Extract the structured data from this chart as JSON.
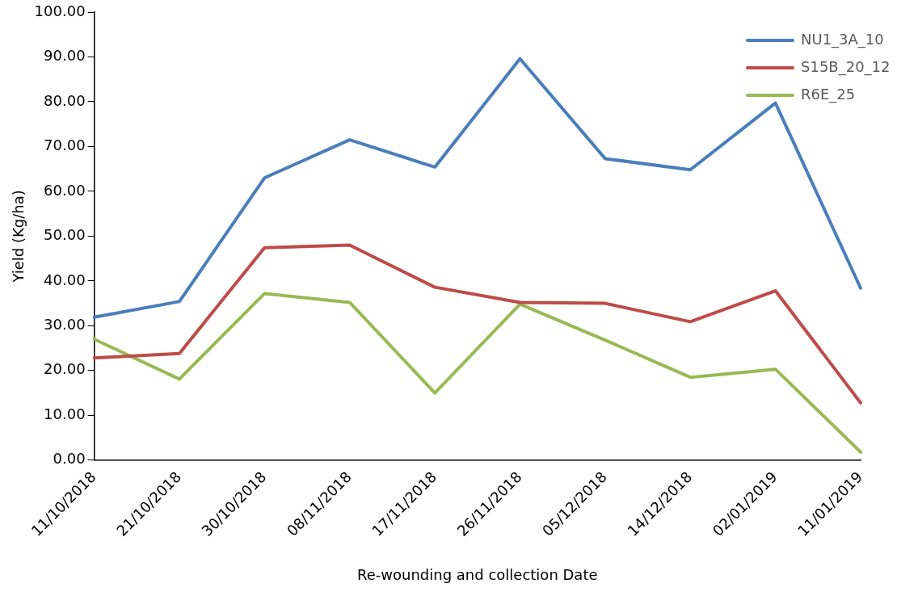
{
  "chart_data": {
    "type": "line",
    "xlabel": "Re-wounding and collection Date",
    "ylabel": "Yield (Kg/ha)",
    "categories": [
      "11/10/2018",
      "21/10/2018",
      "30/10/2018",
      "08/11/2018",
      "17/11/2018",
      "26/11/2018",
      "05/12/2018",
      "14/12/2018",
      "02/01/2019",
      "11/01/2019"
    ],
    "series": [
      {
        "name": "NU1_3A_10",
        "color": "#4a7ebb",
        "values": [
          31.9,
          35.4,
          63.0,
          71.5,
          65.4,
          89.6,
          67.3,
          64.8,
          79.7,
          38.4
        ]
      },
      {
        "name": "S15B_20_12",
        "color": "#be4b48",
        "values": [
          22.8,
          23.8,
          47.4,
          48.0,
          38.6,
          35.2,
          35.0,
          30.9,
          37.8,
          12.8
        ]
      },
      {
        "name": "R6E_25",
        "color": "#98b954",
        "values": [
          27.0,
          18.1,
          37.2,
          35.2,
          15.0,
          34.8,
          26.8,
          18.5,
          20.3,
          1.8
        ]
      }
    ],
    "ylim": [
      0,
      100
    ],
    "yticks": [
      {
        "value": 0,
        "label": "0.00"
      },
      {
        "value": 10,
        "label": "10.00"
      },
      {
        "value": 20,
        "label": "20.00"
      },
      {
        "value": 30,
        "label": "30.00"
      },
      {
        "value": 40,
        "label": "40.00"
      },
      {
        "value": 50,
        "label": "50.00"
      },
      {
        "value": 60,
        "label": "60.00"
      },
      {
        "value": 70,
        "label": "70.00"
      },
      {
        "value": 80,
        "label": "80.00"
      },
      {
        "value": 90,
        "label": "90.00"
      },
      {
        "value": 100,
        "label": "100.00"
      }
    ],
    "grid": false,
    "legend": "top right",
    "marker": "none",
    "line_style": "solid"
  }
}
